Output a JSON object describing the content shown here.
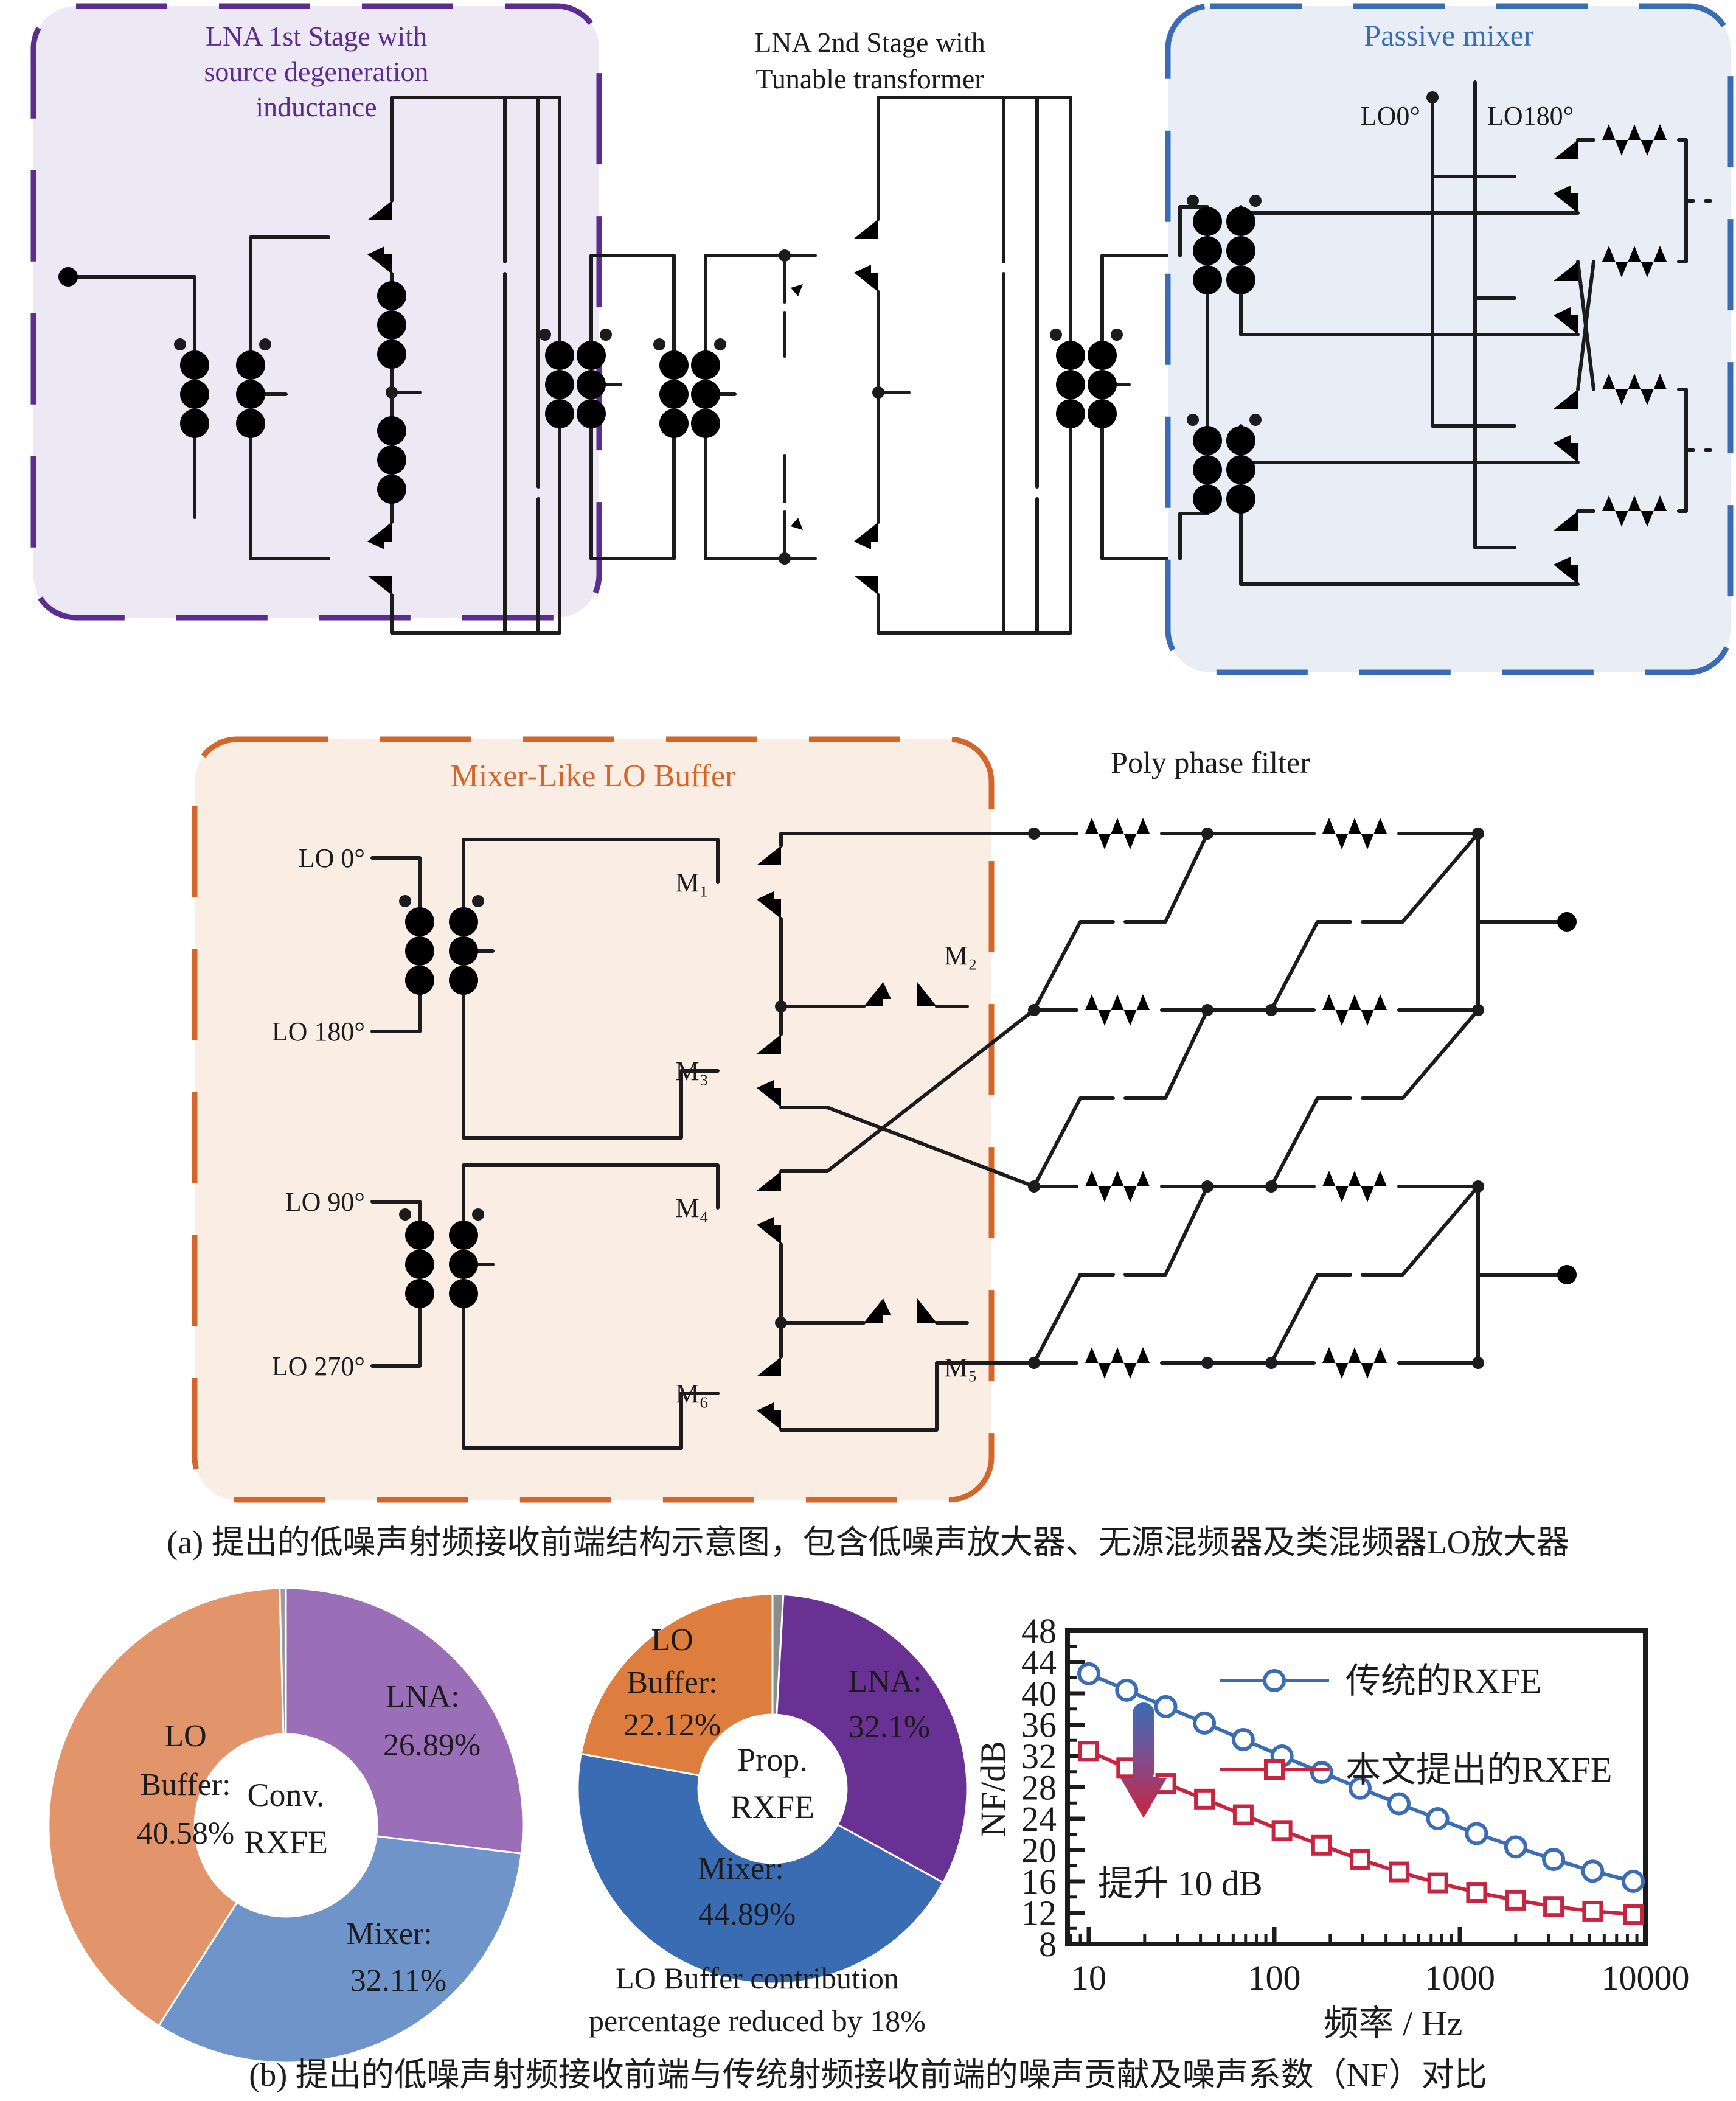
{
  "panel_a": {
    "lna1": {
      "title_lines": [
        "LNA 1st Stage with",
        "source degeneration",
        "inductance"
      ]
    },
    "lna2": {
      "title_lines": [
        "LNA 2nd Stage with",
        "Tunable transformer"
      ]
    },
    "mixer": {
      "title": "Passive mixer",
      "lo0": "LO0°",
      "lo180": "LO180°"
    },
    "lo_buffer": {
      "title": "Mixer-Like LO Buffer",
      "lo_0": "LO 0°",
      "lo_180": "LO 180°",
      "lo_90": "LO 90°",
      "lo_270": "LO 270°",
      "m1": "M₁",
      "m2": "M₂",
      "m3": "M₃",
      "m4": "M₄",
      "m5": "M₅",
      "m6": "M₆"
    },
    "ppf": {
      "title": "Poly phase filter"
    },
    "caption": "(a) 提出的低噪声射频接收前端结构示意图，包含低噪声放大器、无源混频器及类混频器LO放大器"
  },
  "panel_b": {
    "caption": "(b) 提出的低噪声射频接收前端与传统射频接收前端的噪声贡献及噪声系数（NF）对比"
  },
  "chart_data": [
    {
      "type": "pie",
      "name": "conventional-rxfe-noise-breakdown",
      "center_lines": [
        "Conv.",
        "RXFE"
      ],
      "slices": [
        {
          "label": "LNA",
          "value": 26.89,
          "color": "#9A6FB8",
          "label_lines": [
            "LNA:",
            "26.89%"
          ]
        },
        {
          "label": "Mixer",
          "value": 32.11,
          "color": "#6F94C9",
          "label_lines": [
            "Mixer:",
            "32.11%"
          ]
        },
        {
          "label": "LO Buffer",
          "value": 40.58,
          "color": "#E2946A",
          "label_lines": [
            "LO",
            "Buffer:",
            "40.58%"
          ]
        },
        {
          "label": "Other",
          "value": 0.42,
          "color": "#9C9C9C",
          "label_lines": []
        }
      ]
    },
    {
      "type": "pie",
      "name": "proposed-rxfe-noise-breakdown",
      "center_lines": [
        "Prop.",
        "RXFE"
      ],
      "note_lines": [
        "LO Buffer contribution",
        "percentage reduced by 18%"
      ],
      "slices": [
        {
          "label": "Other",
          "value": 0.89,
          "color": "#8C8C8C",
          "label_lines": []
        },
        {
          "label": "LNA",
          "value": 32.1,
          "color": "#6A3194",
          "label_lines": [
            "LNA:",
            "32.1%"
          ]
        },
        {
          "label": "Mixer",
          "value": 44.89,
          "color": "#3A6CB4",
          "label_lines": [
            "Mixer:",
            "44.89%"
          ]
        },
        {
          "label": "LO Buffer",
          "value": 22.12,
          "color": "#DD7E3E",
          "label_lines": [
            "LO",
            "Buffer:",
            "22.12%"
          ]
        }
      ]
    },
    {
      "type": "line",
      "name": "nf-vs-frequency",
      "xlabel": "频率 / Hz",
      "ylabel": "NF/dB",
      "xscale": "log",
      "xlim": [
        7.6,
        10000
      ],
      "ylim": [
        8,
        48
      ],
      "ytick_step": 4,
      "xticks": [
        10,
        100,
        1000,
        10000
      ],
      "annotation": "提升 10 dB",
      "legend_position": "top",
      "grid": false,
      "series": [
        {
          "name": "传统的RXFE",
          "color": "#3B6DB5",
          "marker": "circle",
          "points": [
            [
              10,
              42.5
            ],
            [
              16,
              40.4
            ],
            [
              26,
              38.3
            ],
            [
              42,
              36.2
            ],
            [
              68,
              34.1
            ],
            [
              110,
              32.0
            ],
            [
              180,
              29.9
            ],
            [
              290,
              27.9
            ],
            [
              470,
              25.9
            ],
            [
              760,
              24.0
            ],
            [
              1230,
              22.1
            ],
            [
              2000,
              20.4
            ],
            [
              3200,
              18.8
            ],
            [
              5200,
              17.3
            ],
            [
              8600,
              16.0
            ]
          ]
        },
        {
          "name": "本文提出的RXFE",
          "color": "#C9243F",
          "marker": "square",
          "points": [
            [
              10,
              32.6
            ],
            [
              16,
              30.5
            ],
            [
              26,
              28.5
            ],
            [
              42,
              26.5
            ],
            [
              68,
              24.5
            ],
            [
              110,
              22.5
            ],
            [
              180,
              20.6
            ],
            [
              290,
              18.8
            ],
            [
              470,
              17.2
            ],
            [
              760,
              15.8
            ],
            [
              1230,
              14.6
            ],
            [
              2000,
              13.6
            ],
            [
              3200,
              12.8
            ],
            [
              5200,
              12.2
            ],
            [
              8600,
              11.8
            ]
          ]
        }
      ]
    }
  ]
}
